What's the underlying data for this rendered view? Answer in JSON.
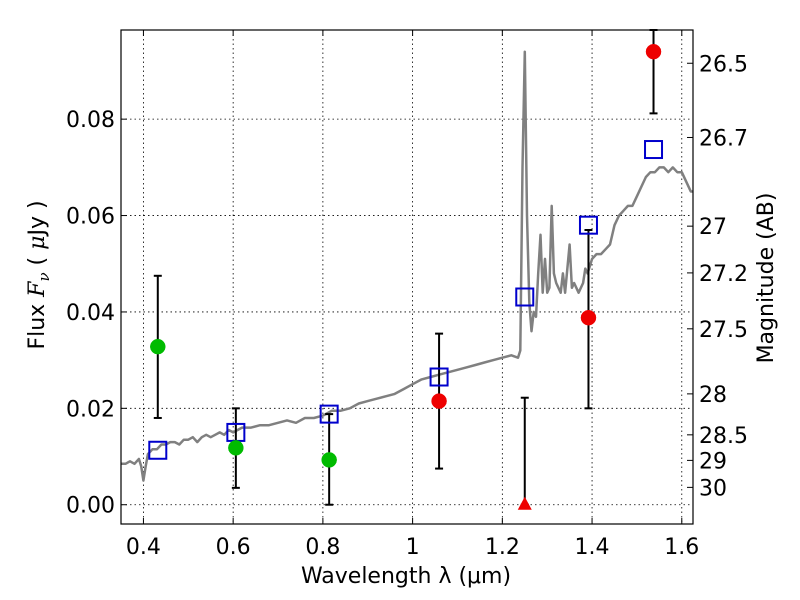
{
  "chart_data": {
    "type": "scatter",
    "xlabel": "Wavelength  λ (μm)",
    "ylabel_parts": [
      "Flux  ",
      "F",
      "ν",
      "  ( ",
      "μ",
      "Jy )"
    ],
    "ylabel_right": "Magnitude (AB)",
    "xlim": [
      0.35,
      1.625
    ],
    "ylim": [
      -0.004,
      0.0985
    ],
    "grid": true,
    "xticks": [
      {
        "value": 0.4,
        "label": "0.4"
      },
      {
        "value": 0.6,
        "label": "0.6"
      },
      {
        "value": 0.8,
        "label": "0.8"
      },
      {
        "value": 1.0,
        "label": "1"
      },
      {
        "value": 1.2,
        "label": "1.2"
      },
      {
        "value": 1.4,
        "label": "1.4"
      },
      {
        "value": 1.6,
        "label": "1.6"
      }
    ],
    "yticks": [
      {
        "value": 0.0,
        "label": "0.00"
      },
      {
        "value": 0.02,
        "label": "0.02"
      },
      {
        "value": 0.04,
        "label": "0.04"
      },
      {
        "value": 0.06,
        "label": "0.06"
      },
      {
        "value": 0.08,
        "label": "0.08"
      }
    ],
    "right_ticks": [
      {
        "label": "26.5",
        "flux": 0.0916
      },
      {
        "label": "26.7",
        "flux": 0.0762
      },
      {
        "label": "27",
        "flux": 0.0578
      },
      {
        "label": "27.2",
        "flux": 0.0481
      },
      {
        "label": "27.5",
        "flux": 0.0365
      },
      {
        "label": "28",
        "flux": 0.023
      },
      {
        "label": "28.5",
        "flux": 0.0145
      },
      {
        "label": "29",
        "flux": 0.0092
      },
      {
        "label": "30",
        "flux": 0.0036
      }
    ],
    "template_spectrum": {
      "color": "#808080",
      "points": [
        [
          0.35,
          0.0085
        ],
        [
          0.36,
          0.0085
        ],
        [
          0.37,
          0.009
        ],
        [
          0.38,
          0.0085
        ],
        [
          0.39,
          0.0095
        ],
        [
          0.395,
          0.008
        ],
        [
          0.4,
          0.005
        ],
        [
          0.405,
          0.008
        ],
        [
          0.41,
          0.0105
        ],
        [
          0.42,
          0.0115
        ],
        [
          0.43,
          0.0115
        ],
        [
          0.44,
          0.0125
        ],
        [
          0.45,
          0.0125
        ],
        [
          0.46,
          0.013
        ],
        [
          0.47,
          0.013
        ],
        [
          0.48,
          0.0125
        ],
        [
          0.49,
          0.0135
        ],
        [
          0.5,
          0.0135
        ],
        [
          0.51,
          0.014
        ],
        [
          0.52,
          0.013
        ],
        [
          0.53,
          0.014
        ],
        [
          0.54,
          0.0145
        ],
        [
          0.55,
          0.014
        ],
        [
          0.56,
          0.0145
        ],
        [
          0.57,
          0.015
        ],
        [
          0.58,
          0.0145
        ],
        [
          0.59,
          0.0155
        ],
        [
          0.6,
          0.015
        ],
        [
          0.61,
          0.0155
        ],
        [
          0.62,
          0.016
        ],
        [
          0.64,
          0.016
        ],
        [
          0.66,
          0.0165
        ],
        [
          0.68,
          0.0165
        ],
        [
          0.7,
          0.017
        ],
        [
          0.72,
          0.0175
        ],
        [
          0.74,
          0.017
        ],
        [
          0.76,
          0.018
        ],
        [
          0.78,
          0.018
        ],
        [
          0.8,
          0.0185
        ],
        [
          0.82,
          0.0195
        ],
        [
          0.84,
          0.0195
        ],
        [
          0.86,
          0.02
        ],
        [
          0.88,
          0.021
        ],
        [
          0.9,
          0.0215
        ],
        [
          0.92,
          0.022
        ],
        [
          0.94,
          0.0225
        ],
        [
          0.96,
          0.023
        ],
        [
          0.98,
          0.024
        ],
        [
          1.0,
          0.025
        ],
        [
          1.02,
          0.026
        ],
        [
          1.04,
          0.0265
        ],
        [
          1.06,
          0.027
        ],
        [
          1.08,
          0.0275
        ],
        [
          1.1,
          0.028
        ],
        [
          1.12,
          0.0285
        ],
        [
          1.14,
          0.029
        ],
        [
          1.16,
          0.0295
        ],
        [
          1.18,
          0.03
        ],
        [
          1.2,
          0.0305
        ],
        [
          1.22,
          0.031
        ],
        [
          1.235,
          0.0305
        ],
        [
          1.24,
          0.032
        ],
        [
          1.245,
          0.07
        ],
        [
          1.25,
          0.094
        ],
        [
          1.255,
          0.06
        ],
        [
          1.26,
          0.042
        ],
        [
          1.265,
          0.036
        ],
        [
          1.27,
          0.04
        ],
        [
          1.275,
          0.039
        ],
        [
          1.28,
          0.048
        ],
        [
          1.285,
          0.056
        ],
        [
          1.29,
          0.044
        ],
        [
          1.295,
          0.051
        ],
        [
          1.3,
          0.044
        ],
        [
          1.305,
          0.045
        ],
        [
          1.31,
          0.062
        ],
        [
          1.315,
          0.048
        ],
        [
          1.32,
          0.046
        ],
        [
          1.33,
          0.044
        ],
        [
          1.335,
          0.048
        ],
        [
          1.34,
          0.044
        ],
        [
          1.35,
          0.054
        ],
        [
          1.355,
          0.045
        ],
        [
          1.36,
          0.046
        ],
        [
          1.37,
          0.044
        ],
        [
          1.38,
          0.046
        ],
        [
          1.385,
          0.049
        ],
        [
          1.39,
          0.048
        ],
        [
          1.4,
          0.051
        ],
        [
          1.41,
          0.052
        ],
        [
          1.42,
          0.052
        ],
        [
          1.43,
          0.053
        ],
        [
          1.44,
          0.054
        ],
        [
          1.45,
          0.058
        ],
        [
          1.46,
          0.06
        ],
        [
          1.47,
          0.061
        ],
        [
          1.48,
          0.062
        ],
        [
          1.49,
          0.062
        ],
        [
          1.5,
          0.064
        ],
        [
          1.51,
          0.066
        ],
        [
          1.52,
          0.068
        ],
        [
          1.53,
          0.069
        ],
        [
          1.54,
          0.069
        ],
        [
          1.55,
          0.07
        ],
        [
          1.56,
          0.07
        ],
        [
          1.57,
          0.069
        ],
        [
          1.58,
          0.07
        ],
        [
          1.59,
          0.069
        ],
        [
          1.6,
          0.069
        ],
        [
          1.61,
          0.067
        ],
        [
          1.62,
          0.065
        ],
        [
          1.625,
          0.065
        ]
      ]
    },
    "model_photometry": {
      "marker": "open-square",
      "color": "#0000cc",
      "points": [
        {
          "x": 0.432,
          "y": 0.0113
        },
        {
          "x": 0.606,
          "y": 0.015
        },
        {
          "x": 0.814,
          "y": 0.0188
        },
        {
          "x": 1.059,
          "y": 0.0265
        },
        {
          "x": 1.25,
          "y": 0.0431
        },
        {
          "x": 1.392,
          "y": 0.058
        },
        {
          "x": 1.537,
          "y": 0.0737
        }
      ]
    },
    "observed": {
      "marker": "filled-circle",
      "points": [
        {
          "x": 0.432,
          "y": 0.0328,
          "yerr_low": 0.018,
          "yerr_high": 0.0475,
          "color": "#00bb00"
        },
        {
          "x": 0.606,
          "y": 0.0118,
          "yerr_low": 0.0035,
          "yerr_high": 0.02,
          "color": "#00bb00"
        },
        {
          "x": 0.814,
          "y": 0.0093,
          "yerr_low": 0.0,
          "yerr_high": 0.0188,
          "color": "#00bb00"
        },
        {
          "x": 1.059,
          "y": 0.0215,
          "yerr_low": 0.0075,
          "yerr_high": 0.0355,
          "color": "#ee0000"
        },
        {
          "x": 1.392,
          "y": 0.0388,
          "yerr_low": 0.02,
          "yerr_high": 0.057,
          "color": "#ee0000"
        },
        {
          "x": 1.537,
          "y": 0.094,
          "yerr_low": 0.0812,
          "yerr_high": 0.0985,
          "color": "#ee0000"
        }
      ]
    },
    "upper_limit": {
      "marker": "triangle",
      "x": 1.25,
      "y": 0.0,
      "yerr_high": 0.0222,
      "color": "#ee0000"
    }
  }
}
